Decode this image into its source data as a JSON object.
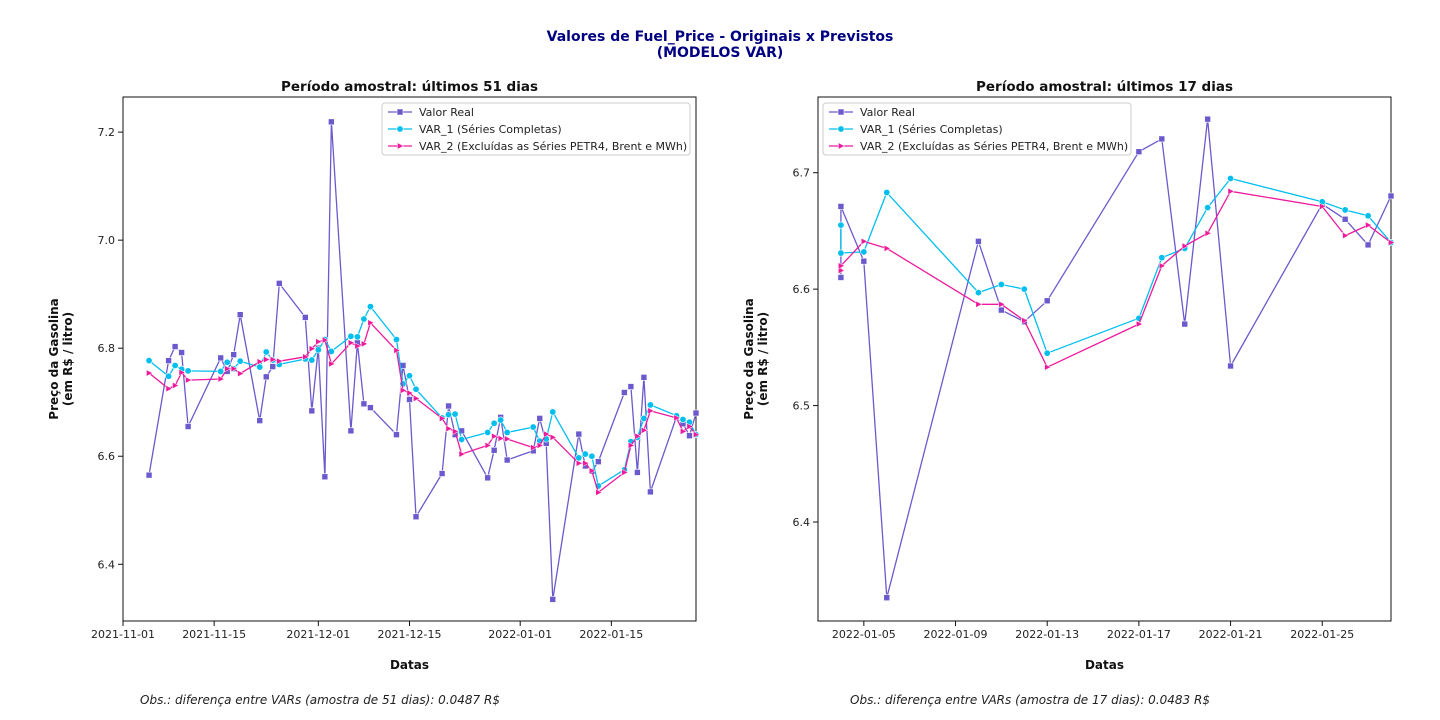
{
  "figure": {
    "suptitle_line1": "Valores de Fuel_Price - Originais x Previstos",
    "suptitle_line2": "(MODELOS VAR)",
    "colors": {
      "real": "#6a5acd",
      "var1": "#00bfef",
      "var2": "#ee1a9c"
    },
    "notes": [
      "Obs.: diferença entre VARs (amostra de 51 dias): 0.0487 R$",
      "Obs.: diferença entre VARs (amostra de 17 dias): 0.0483 R$"
    ]
  },
  "chart_data": [
    {
      "type": "line",
      "title": "Período amostral: últimos 51 dias",
      "xlabel": "Datas",
      "ylabel": "Preço da Gasolina\n(em R$ / litro)",
      "x_type": "date",
      "xlim": [
        "2021-11-01",
        "2022-01-28"
      ],
      "ylim": [
        6.295,
        7.265
      ],
      "x_ticks": [
        "2021-11-01",
        "2021-11-15",
        "2021-12-01",
        "2021-12-15",
        "2022-01-01",
        "2022-01-15"
      ],
      "y_ticks": [
        6.4,
        6.6,
        6.8,
        7.0,
        7.2
      ],
      "legend_position": "top-right",
      "grid": false,
      "x": [
        "2021-11-05",
        "2021-11-08",
        "2021-11-09",
        "2021-11-10",
        "2021-11-11",
        "2021-11-16",
        "2021-11-17",
        "2021-11-18",
        "2021-11-19",
        "2021-11-22",
        "2021-11-23",
        "2021-11-24",
        "2021-11-25",
        "2021-11-29",
        "2021-11-30",
        "2021-12-01",
        "2021-12-02",
        "2021-12-03",
        "2021-12-06",
        "2021-12-07",
        "2021-12-08",
        "2021-12-09",
        "2021-12-13",
        "2021-12-14",
        "2021-12-15",
        "2021-12-16",
        "2021-12-20",
        "2021-12-21",
        "2021-12-22",
        "2021-12-23",
        "2021-12-27",
        "2021-12-28",
        "2021-12-29",
        "2021-12-30",
        "2022-01-03",
        "2022-01-04",
        "2022-01-05",
        "2022-01-06",
        "2022-01-10",
        "2022-01-11",
        "2022-01-12",
        "2022-01-13",
        "2022-01-17",
        "2022-01-18",
        "2022-01-19",
        "2022-01-20",
        "2022-01-21",
        "2022-01-25",
        "2022-01-26",
        "2022-01-27",
        "2022-01-28"
      ],
      "series": [
        {
          "name": "Valor Real",
          "values": [
            6.565,
            6.777,
            6.803,
            6.792,
            6.655,
            6.782,
            6.757,
            6.788,
            6.862,
            6.666,
            6.747,
            6.766,
            6.92,
            6.857,
            6.684,
            6.8,
            6.562,
            7.219,
            6.647,
            6.81,
            6.697,
            6.69,
            6.64,
            6.768,
            6.705,
            6.488,
            6.568,
            6.693,
            6.64,
            6.647,
            6.56,
            6.611,
            6.672,
            6.593,
            6.61,
            6.67,
            6.624,
            6.335,
            6.641,
            6.582,
            6.572,
            6.59,
            6.718,
            6.729,
            6.57,
            6.746,
            6.534,
            6.673,
            6.66,
            6.638,
            6.68
          ]
        },
        {
          "name": "VAR_1 (Séries Completas)",
          "values": [
            6.777,
            6.748,
            6.768,
            6.761,
            6.758,
            6.757,
            6.774,
            6.762,
            6.776,
            6.765,
            6.793,
            6.778,
            6.77,
            6.78,
            6.778,
            6.797,
            6.816,
            6.794,
            6.822,
            6.821,
            6.854,
            6.877,
            6.816,
            6.734,
            6.749,
            6.724,
            6.671,
            6.677,
            6.678,
            6.631,
            6.644,
            6.661,
            6.667,
            6.644,
            6.654,
            6.628,
            6.632,
            6.682,
            6.597,
            6.604,
            6.6,
            6.545,
            6.575,
            6.627,
            6.635,
            6.67,
            6.695,
            6.675,
            6.668,
            6.663,
            6.64
          ]
        },
        {
          "name": "VAR_2 (Excluídas as Séries PETR4, Brent e MWh)",
          "values": [
            6.754,
            6.725,
            6.731,
            6.755,
            6.741,
            6.743,
            6.762,
            6.762,
            6.753,
            6.775,
            6.779,
            6.779,
            6.776,
            6.784,
            6.799,
            6.812,
            6.815,
            6.771,
            6.81,
            6.804,
            6.808,
            6.847,
            6.796,
            6.722,
            6.717,
            6.707,
            6.67,
            6.651,
            6.646,
            6.604,
            6.62,
            6.637,
            6.633,
            6.632,
            6.616,
            6.62,
            6.641,
            6.635,
            6.587,
            6.587,
            6.573,
            6.533,
            6.57,
            6.62,
            6.637,
            6.648,
            6.684,
            6.671,
            6.646,
            6.655,
            6.64
          ]
        }
      ]
    },
    {
      "type": "line",
      "title": "Período amostral: últimos 17 dias",
      "xlabel": "Datas",
      "ylabel": "Preço da Gasolina\n(em R$ / litro)",
      "x_type": "date",
      "xlim": [
        "2022-01-03",
        "2022-01-28"
      ],
      "ylim": [
        6.315,
        6.765
      ],
      "x_ticks": [
        "2022-01-05",
        "2022-01-09",
        "2022-01-13",
        "2022-01-17",
        "2022-01-21",
        "2022-01-25"
      ],
      "y_ticks": [
        6.4,
        6.5,
        6.6,
        6.7
      ],
      "legend_position": "top-left",
      "grid": false,
      "x": [
        "2022-01-04",
        "2022-01-04",
        "2022-01-05",
        "2022-01-06",
        "2022-01-10",
        "2022-01-11",
        "2022-01-12",
        "2022-01-13",
        "2022-01-17",
        "2022-01-18",
        "2022-01-19",
        "2022-01-20",
        "2022-01-21",
        "2022-01-25",
        "2022-01-26",
        "2022-01-27",
        "2022-01-28"
      ],
      "series": [
        {
          "name": "Valor Real",
          "values": [
            6.61,
            6.671,
            6.624,
            6.335,
            6.641,
            6.582,
            6.572,
            6.59,
            6.718,
            6.729,
            6.57,
            6.746,
            6.534,
            6.673,
            6.66,
            6.638,
            6.68
          ]
        },
        {
          "name": "VAR_1 (Séries Completas)",
          "values": [
            6.655,
            6.631,
            6.632,
            6.683,
            6.597,
            6.604,
            6.6,
            6.545,
            6.575,
            6.627,
            6.635,
            6.67,
            6.695,
            6.675,
            6.668,
            6.663,
            6.64
          ]
        },
        {
          "name": "VAR_2 (Excluídas as Séries PETR4, Brent e MWh)",
          "values": [
            6.616,
            6.62,
            6.641,
            6.635,
            6.587,
            6.587,
            6.573,
            6.533,
            6.57,
            6.62,
            6.637,
            6.648,
            6.684,
            6.671,
            6.646,
            6.655,
            6.64
          ]
        }
      ]
    }
  ]
}
